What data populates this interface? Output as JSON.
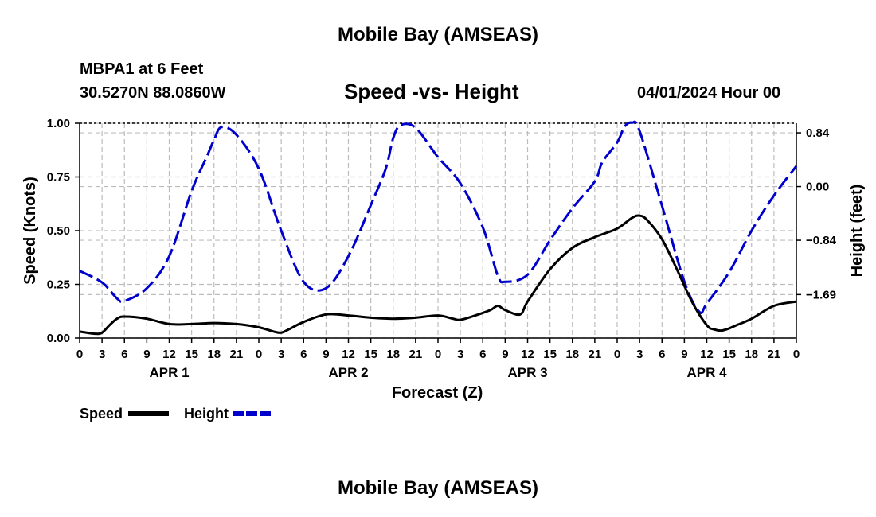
{
  "header": {
    "title": "Mobile Bay (AMSEAS)",
    "station": "MBPA1 at 6 Feet",
    "coords": "30.5270N  88.0860W",
    "subtitle": "Speed -vs- Height",
    "datetime": "04/01/2024 Hour 00"
  },
  "footer": {
    "title": "Mobile Bay (AMSEAS)"
  },
  "chart_data": {
    "type": "line",
    "title": "Speed -vs- Height",
    "xlabel": "Forecast (Z)",
    "ylabel": "Speed (Knots)",
    "y2label": "Height (feet)",
    "xlim": [
      0,
      96
    ],
    "ylim": [
      0,
      1
    ],
    "y2lim": [
      -2.37,
      0.99
    ],
    "xticks": [
      0,
      3,
      6,
      9,
      12,
      15,
      18,
      21,
      24,
      27,
      30,
      33,
      36,
      39,
      42,
      45,
      48,
      51,
      54,
      57,
      60,
      63,
      66,
      69,
      72,
      75,
      78,
      81,
      84,
      87,
      90,
      93,
      96
    ],
    "xtick_labels": [
      "0",
      "3",
      "6",
      "9",
      "12",
      "15",
      "18",
      "21",
      "0",
      "3",
      "6",
      "9",
      "12",
      "15",
      "18",
      "21",
      "0",
      "3",
      "6",
      "9",
      "12",
      "15",
      "18",
      "21",
      "0",
      "3",
      "6",
      "9",
      "12",
      "15",
      "18",
      "21",
      "0"
    ],
    "day_labels": [
      {
        "x": 12,
        "label": "APR 1"
      },
      {
        "x": 36,
        "label": "APR 2"
      },
      {
        "x": 60,
        "label": "APR 3"
      },
      {
        "x": 84,
        "label": "APR 4"
      }
    ],
    "yticks": [
      0,
      0.25,
      0.5,
      0.75,
      1.0
    ],
    "ytick_labels": [
      "0.00",
      "0.25",
      "0.50",
      "0.75",
      "1.00"
    ],
    "y2ticks": [
      0.84,
      0.0,
      -0.84,
      -1.69
    ],
    "y2tick_labels": [
      "0.84",
      "0.00",
      "−0.84",
      "−1.69"
    ],
    "grid": true,
    "legend": "bottom-left",
    "series": [
      {
        "name": "Speed",
        "axis": "left",
        "color": "#000000",
        "style": "solid",
        "x": [
          0,
          2,
          3,
          4,
          5,
          6,
          9,
          12,
          15,
          18,
          21,
          24,
          26,
          27,
          28,
          30,
          33,
          36,
          39,
          42,
          45,
          48,
          50,
          51,
          53,
          55,
          56,
          57,
          59,
          60,
          63,
          66,
          69,
          72,
          74,
          75,
          76,
          78,
          80,
          82,
          84,
          85,
          86,
          87,
          88,
          90,
          93,
          96
        ],
        "values": [
          0.03,
          0.02,
          0.025,
          0.06,
          0.09,
          0.1,
          0.09,
          0.065,
          0.065,
          0.07,
          0.065,
          0.05,
          0.03,
          0.025,
          0.04,
          0.075,
          0.11,
          0.105,
          0.095,
          0.09,
          0.095,
          0.105,
          0.09,
          0.085,
          0.105,
          0.13,
          0.15,
          0.13,
          0.11,
          0.17,
          0.32,
          0.42,
          0.47,
          0.51,
          0.56,
          0.57,
          0.55,
          0.46,
          0.32,
          0.17,
          0.06,
          0.04,
          0.035,
          0.045,
          0.06,
          0.09,
          0.15,
          0.17
        ]
      },
      {
        "name": "Height",
        "axis": "right",
        "color": "#0000cc",
        "style": "dashed",
        "x": [
          0,
          3,
          5,
          6,
          9,
          12,
          15,
          17,
          18,
          19,
          21,
          24,
          27,
          30,
          33,
          36,
          39,
          41,
          42,
          43,
          45,
          48,
          51,
          54,
          56,
          57,
          60,
          63,
          66,
          69,
          70,
          72,
          73,
          74,
          75,
          78,
          81,
          83,
          84,
          87,
          90,
          93,
          96
        ],
        "values": [
          -1.32,
          -1.5,
          -1.75,
          -1.79,
          -1.59,
          -1.09,
          -0.07,
          0.46,
          0.73,
          0.93,
          0.81,
          0.28,
          -0.69,
          -1.49,
          -1.59,
          -1.09,
          -0.29,
          0.28,
          0.76,
          0.96,
          0.92,
          0.46,
          0.05,
          -0.64,
          -1.39,
          -1.49,
          -1.38,
          -0.84,
          -0.34,
          0.08,
          0.38,
          0.69,
          0.94,
          1.0,
          0.87,
          -0.3,
          -1.49,
          -1.96,
          -1.83,
          -1.34,
          -0.69,
          -0.14,
          0.32
        ]
      }
    ]
  }
}
